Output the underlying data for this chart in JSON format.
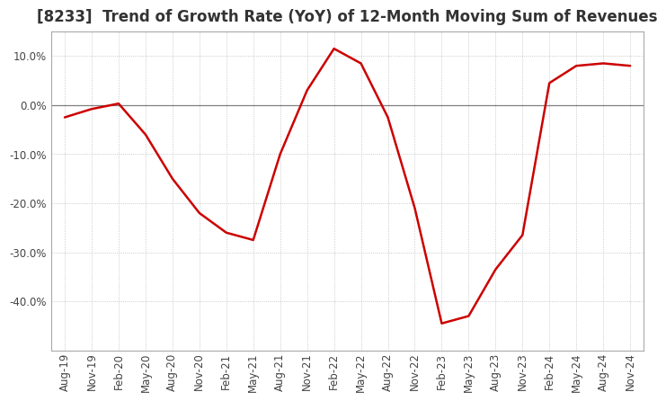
{
  "title": "[8233]  Trend of Growth Rate (YoY) of 12-Month Moving Sum of Revenues",
  "x_labels": [
    "Aug-19",
    "Nov-19",
    "Feb-20",
    "May-20",
    "Aug-20",
    "Nov-20",
    "Feb-21",
    "May-21",
    "Aug-21",
    "Nov-21",
    "Feb-22",
    "May-22",
    "Aug-22",
    "Nov-22",
    "Feb-23",
    "May-23",
    "Aug-23",
    "Nov-23",
    "Feb-24",
    "May-24",
    "Aug-24",
    "Nov-24"
  ],
  "y_values": [
    -2.5,
    -0.8,
    0.3,
    -6.0,
    -15.0,
    -22.0,
    -26.0,
    -27.5,
    -10.0,
    3.0,
    11.5,
    8.5,
    -2.5,
    -21.0,
    -44.5,
    -43.0,
    -33.5,
    -26.5,
    4.5,
    8.0,
    8.5,
    8.0
  ],
  "line_color": "#cc0000",
  "bg_color": "#ffffff",
  "plot_bg_color": "#ffffff",
  "grid_color": "#bbbbbb",
  "zero_line_color": "#808080",
  "ylim": [
    -50,
    15
  ],
  "yticks": [
    -40.0,
    -30.0,
    -20.0,
    -10.0,
    0.0,
    10.0
  ],
  "title_fontsize": 12,
  "tick_fontsize": 8.5,
  "line_width": 1.8,
  "title_color": "#333333"
}
